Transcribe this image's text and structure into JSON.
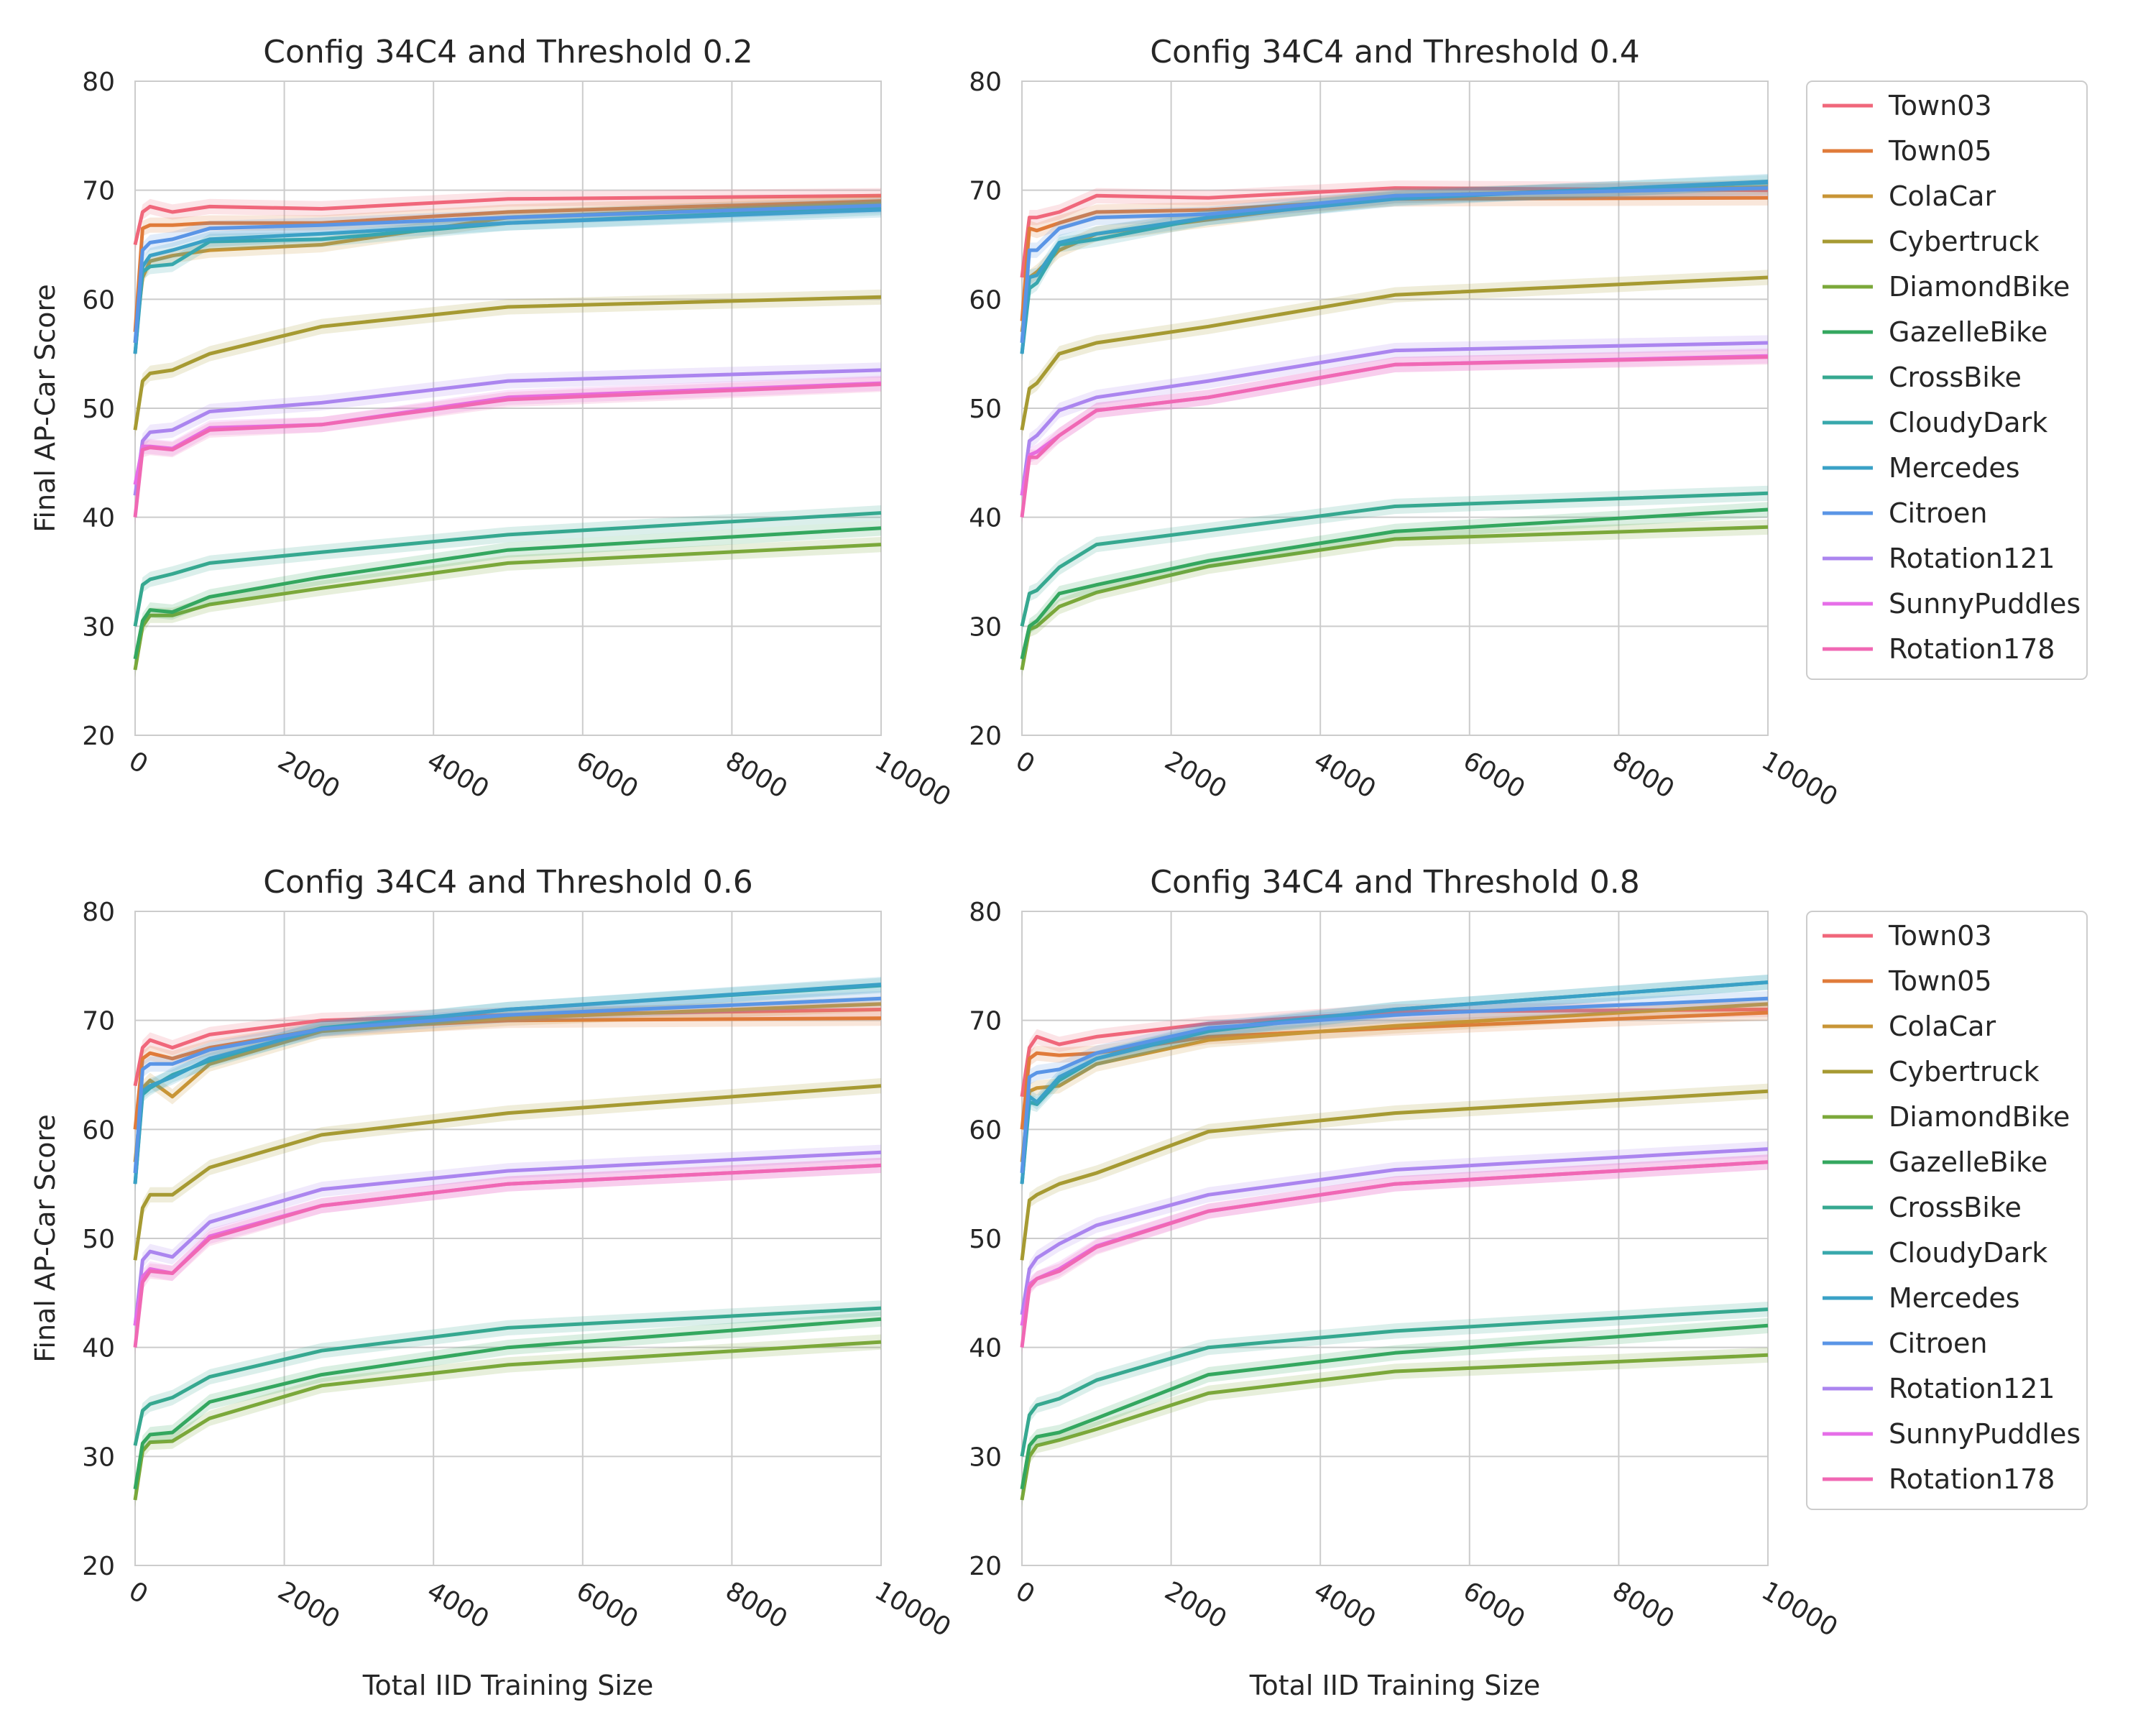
{
  "chart_data": [
    {
      "type": "line",
      "title": "Config 34C4 and Threshold 0.2",
      "xlabel": "",
      "ylabel": "Final AP-Car Score",
      "xlim": [
        0,
        10000
      ],
      "ylim": [
        20,
        80
      ],
      "xticks": [
        "0",
        "2000",
        "4000",
        "6000",
        "8000",
        "10000"
      ],
      "yticks": [
        "20",
        "30",
        "40",
        "50",
        "60",
        "70",
        "80"
      ],
      "grid": true,
      "legend": false,
      "x": [
        0,
        100,
        200,
        500,
        1000,
        2500,
        5000,
        10000
      ],
      "series": [
        {
          "name": "Town03",
          "values": [
            65,
            68,
            68.5,
            68,
            68.5,
            68.3,
            69.2,
            69.5
          ]
        },
        {
          "name": "Town05",
          "values": [
            57,
            66.5,
            66.8,
            66.8,
            67,
            67,
            68,
            69
          ]
        },
        {
          "name": "ColaCar",
          "values": [
            56,
            62,
            63.5,
            64,
            64.5,
            65,
            67.5,
            68.8
          ]
        },
        {
          "name": "Cybertruck",
          "values": [
            48,
            52.5,
            53.2,
            53.5,
            55,
            57.5,
            59.3,
            60.2
          ]
        },
        {
          "name": "DiamondBike",
          "values": [
            26,
            30,
            31,
            31,
            32,
            33.5,
            35.8,
            37.5
          ]
        },
        {
          "name": "GazelleBike",
          "values": [
            27,
            30.5,
            31.5,
            31.3,
            32.7,
            34.5,
            37,
            39
          ]
        },
        {
          "name": "CrossBike",
          "values": [
            30,
            33.8,
            34.3,
            34.8,
            35.8,
            36.8,
            38.4,
            40.4
          ]
        },
        {
          "name": "CloudyDark",
          "values": [
            55,
            62.5,
            63,
            63.2,
            65.3,
            65.5,
            67,
            68.4
          ]
        },
        {
          "name": "Mercedes",
          "values": [
            55,
            63,
            64,
            64.5,
            65.5,
            66,
            67,
            68.2
          ]
        },
        {
          "name": "Citroen",
          "values": [
            56,
            64.5,
            65.2,
            65.5,
            66.5,
            66.8,
            67.5,
            68.6
          ]
        },
        {
          "name": "Rotation121",
          "values": [
            42,
            47,
            47.8,
            48,
            49.7,
            50.5,
            52.5,
            53.5
          ]
        },
        {
          "name": "SunnyPuddles",
          "values": [
            43,
            46.5,
            46.5,
            46.3,
            48.2,
            48.5,
            51,
            52.3
          ]
        },
        {
          "name": "Rotation178",
          "values": [
            40,
            46.2,
            46.4,
            46.2,
            48,
            48.5,
            50.8,
            52.2
          ]
        }
      ]
    },
    {
      "type": "line",
      "title": "Config 34C4 and Threshold 0.4",
      "xlabel": "",
      "ylabel": "",
      "xlim": [
        0,
        10000
      ],
      "ylim": [
        20,
        80
      ],
      "xticks": [
        "0",
        "2000",
        "4000",
        "6000",
        "8000",
        "10000"
      ],
      "yticks": [
        "20",
        "30",
        "40",
        "50",
        "60",
        "70",
        "80"
      ],
      "grid": true,
      "legend": true,
      "x": [
        0,
        100,
        200,
        500,
        1000,
        2500,
        5000,
        10000
      ],
      "series": [
        {
          "name": "Town03",
          "values": [
            62,
            67.5,
            67.5,
            68,
            69.5,
            69.3,
            70.2,
            70
          ]
        },
        {
          "name": "Town05",
          "values": [
            58,
            66.5,
            66.3,
            67,
            68,
            68.2,
            69.2,
            69.3
          ]
        },
        {
          "name": "ColaCar",
          "values": [
            57,
            62,
            62.5,
            64.5,
            66,
            67.3,
            69.5,
            70.3
          ]
        },
        {
          "name": "Cybertruck",
          "values": [
            48,
            51.8,
            52.3,
            55,
            56,
            57.5,
            60.4,
            62
          ]
        },
        {
          "name": "DiamondBike",
          "values": [
            26,
            29.7,
            30,
            31.8,
            33.1,
            35.5,
            38,
            39.1
          ]
        },
        {
          "name": "GazelleBike",
          "values": [
            27,
            30,
            30.5,
            33,
            33.8,
            36,
            38.7,
            40.7
          ]
        },
        {
          "name": "CrossBike",
          "values": [
            30,
            33,
            33.3,
            35.4,
            37.5,
            38.8,
            41,
            42.2
          ]
        },
        {
          "name": "CloudyDark",
          "values": [
            55,
            61,
            61.5,
            65,
            65.5,
            67.5,
            69.3,
            70.7
          ]
        },
        {
          "name": "Mercedes",
          "values": [
            55,
            62,
            62.2,
            65.2,
            66,
            67.5,
            69.2,
            70.8
          ]
        },
        {
          "name": "Citroen",
          "values": [
            56,
            64.5,
            64.5,
            66.5,
            67.5,
            67.8,
            69.5,
            70.2
          ]
        },
        {
          "name": "Rotation121",
          "values": [
            42,
            47,
            47.5,
            49.8,
            51,
            52.5,
            55.3,
            56
          ]
        },
        {
          "name": "SunnyPuddles",
          "values": [
            42,
            45.7,
            46,
            47.5,
            49.8,
            51,
            54,
            54.8
          ]
        },
        {
          "name": "Rotation178",
          "values": [
            40,
            45.5,
            45.5,
            47.5,
            49.8,
            51,
            54,
            54.7
          ]
        }
      ]
    },
    {
      "type": "line",
      "title": "Config 34C4 and Threshold 0.6",
      "xlabel": "Total IID Training Size",
      "ylabel": "Final AP-Car Score",
      "xlim": [
        0,
        10000
      ],
      "ylim": [
        20,
        80
      ],
      "xticks": [
        "0",
        "2000",
        "4000",
        "6000",
        "8000",
        "10000"
      ],
      "yticks": [
        "20",
        "30",
        "40",
        "50",
        "60",
        "70",
        "80"
      ],
      "grid": true,
      "legend": false,
      "x": [
        0,
        100,
        200,
        500,
        1000,
        2500,
        5000,
        10000
      ],
      "series": [
        {
          "name": "Town03",
          "values": [
            64,
            67.5,
            68.2,
            67.5,
            68.7,
            70,
            70.5,
            71
          ]
        },
        {
          "name": "Town05",
          "values": [
            60,
            66.5,
            67,
            66.5,
            67.5,
            69.2,
            70,
            70.2
          ]
        },
        {
          "name": "ColaCar",
          "values": [
            57,
            63.8,
            64.5,
            63,
            66,
            69,
            70.2,
            71.5
          ]
        },
        {
          "name": "Cybertruck",
          "values": [
            48,
            52.8,
            54,
            54,
            56.5,
            59.5,
            61.5,
            64
          ]
        },
        {
          "name": "DiamondBike",
          "values": [
            26,
            30.5,
            31.3,
            31.4,
            33.5,
            36.5,
            38.4,
            40.5
          ]
        },
        {
          "name": "GazelleBike",
          "values": [
            27,
            31.2,
            32,
            32.2,
            35,
            37.5,
            40,
            42.6
          ]
        },
        {
          "name": "CrossBike",
          "values": [
            31,
            34.2,
            34.8,
            35.4,
            37.3,
            39.7,
            41.8,
            43.6
          ]
        },
        {
          "name": "CloudyDark",
          "values": [
            55,
            63.2,
            63.8,
            65,
            66.3,
            69.3,
            71,
            73.2
          ]
        },
        {
          "name": "Mercedes",
          "values": [
            55,
            63.5,
            64,
            64.8,
            66.5,
            69.2,
            71,
            73.3
          ]
        },
        {
          "name": "Citroen",
          "values": [
            56,
            65.5,
            66,
            66,
            67.3,
            69.2,
            70.5,
            72
          ]
        },
        {
          "name": "Rotation121",
          "values": [
            42,
            48,
            48.8,
            48.3,
            51.5,
            54.5,
            56.2,
            57.9
          ]
        },
        {
          "name": "SunnyPuddles",
          "values": [
            42,
            46.5,
            47.2,
            46.8,
            50.2,
            53,
            55,
            56.7
          ]
        },
        {
          "name": "Rotation178",
          "values": [
            40,
            46,
            47,
            46.8,
            50,
            53,
            55,
            56.7
          ]
        }
      ]
    },
    {
      "type": "line",
      "title": "Config 34C4 and Threshold 0.8",
      "xlabel": "Total IID Training Size",
      "ylabel": "",
      "xlim": [
        0,
        10000
      ],
      "ylim": [
        20,
        80
      ],
      "xticks": [
        "0",
        "2000",
        "4000",
        "6000",
        "8000",
        "10000"
      ],
      "yticks": [
        "20",
        "30",
        "40",
        "50",
        "60",
        "70",
        "80"
      ],
      "grid": true,
      "legend": true,
      "x": [
        0,
        100,
        200,
        500,
        1000,
        2500,
        5000,
        10000
      ],
      "series": [
        {
          "name": "Town03",
          "values": [
            63,
            67.5,
            68.5,
            67.8,
            68.5,
            69.7,
            70.8,
            71
          ]
        },
        {
          "name": "Town05",
          "values": [
            60,
            66.5,
            67,
            66.8,
            67,
            68.5,
            69.3,
            70.7
          ]
        },
        {
          "name": "ColaCar",
          "values": [
            57,
            63.5,
            63.8,
            64,
            66,
            68.2,
            69.5,
            71.5
          ]
        },
        {
          "name": "Cybertruck",
          "values": [
            48,
            53.5,
            54,
            55,
            56,
            59.8,
            61.5,
            63.5
          ]
        },
        {
          "name": "DiamondBike",
          "values": [
            26,
            30,
            31,
            31.5,
            32.5,
            35.8,
            37.8,
            39.3
          ]
        },
        {
          "name": "GazelleBike",
          "values": [
            27,
            31,
            31.8,
            32.2,
            33.5,
            37.5,
            39.5,
            42
          ]
        },
        {
          "name": "CrossBike",
          "values": [
            30,
            33.8,
            34.7,
            35.3,
            37,
            40,
            41.5,
            43.5
          ]
        },
        {
          "name": "CloudyDark",
          "values": [
            55,
            62.5,
            62.3,
            64.5,
            66.5,
            69,
            71,
            73.5
          ]
        },
        {
          "name": "Mercedes",
          "values": [
            55,
            63,
            62.5,
            64.8,
            66.5,
            69.2,
            71,
            73.5
          ]
        },
        {
          "name": "Citroen",
          "values": [
            56,
            64.8,
            65.2,
            65.5,
            67,
            69.3,
            70.5,
            72
          ]
        },
        {
          "name": "Rotation121",
          "values": [
            43,
            47.2,
            48.2,
            49.5,
            51.2,
            54,
            56.3,
            58.2
          ]
        },
        {
          "name": "SunnyPuddles",
          "values": [
            42,
            45.8,
            46.3,
            47.2,
            49.3,
            52.5,
            55,
            57
          ]
        },
        {
          "name": "Rotation178",
          "values": [
            40,
            45.5,
            46.3,
            47,
            49.2,
            52.5,
            55,
            57
          ]
        }
      ]
    }
  ],
  "colors": {
    "Town03": "#f0677b",
    "Town05": "#e07b3a",
    "ColaCar": "#c89536",
    "Cybertruck": "#a69a32",
    "DiamondBike": "#7ba83a",
    "GazelleBike": "#34a75f",
    "CrossBike": "#36a890",
    "CloudyDark": "#38a8ac",
    "Mercedes": "#3aa1c6",
    "Citroen": "#5a95e6",
    "Rotation121": "#ab85ef",
    "SunnyPuddles": "#e66ee8",
    "Rotation178": "#f068b4"
  },
  "legend_items": [
    "Town03",
    "Town05",
    "ColaCar",
    "Cybertruck",
    "DiamondBike",
    "GazelleBike",
    "CrossBike",
    "CloudyDark",
    "Mercedes",
    "Citroen",
    "Rotation121",
    "SunnyPuddles",
    "Rotation178"
  ]
}
